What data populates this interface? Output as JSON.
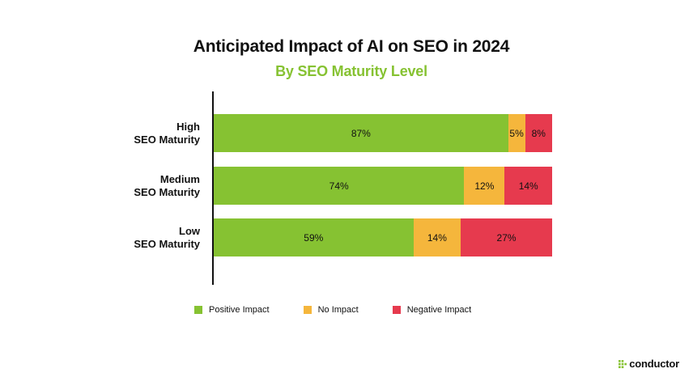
{
  "chart_data": {
    "type": "bar",
    "orientation": "horizontal",
    "stacked": true,
    "normalized": true,
    "title": "Anticipated Impact of AI on SEO in 2024",
    "subtitle": "By SEO Maturity Level",
    "categories": [
      [
        "High",
        "SEO Maturity"
      ],
      [
        "Medium",
        "SEO Maturity"
      ],
      [
        "Low",
        "SEO Maturity"
      ]
    ],
    "series": [
      {
        "name": "Positive Impact",
        "color": "#86C232",
        "values": [
          87,
          74,
          59
        ],
        "labels": [
          "87%",
          "74%",
          "59%"
        ]
      },
      {
        "name": "No Impact",
        "color": "#F5B63C",
        "values": [
          5,
          12,
          14
        ],
        "labels": [
          "5%",
          "12%",
          "14%"
        ]
      },
      {
        "name": "Negative Impact",
        "color": "#E63A4E",
        "values": [
          8,
          14,
          27
        ],
        "labels": [
          "8%",
          "14%",
          "27%"
        ]
      }
    ],
    "xlim": [
      0,
      100
    ],
    "grid": false,
    "legend": "bottom"
  },
  "colors": {
    "subtitle": "#86C232",
    "logo_mark": "#86C232"
  },
  "brand": {
    "name": "conductor",
    "icon": "conductor-dots-icon"
  }
}
